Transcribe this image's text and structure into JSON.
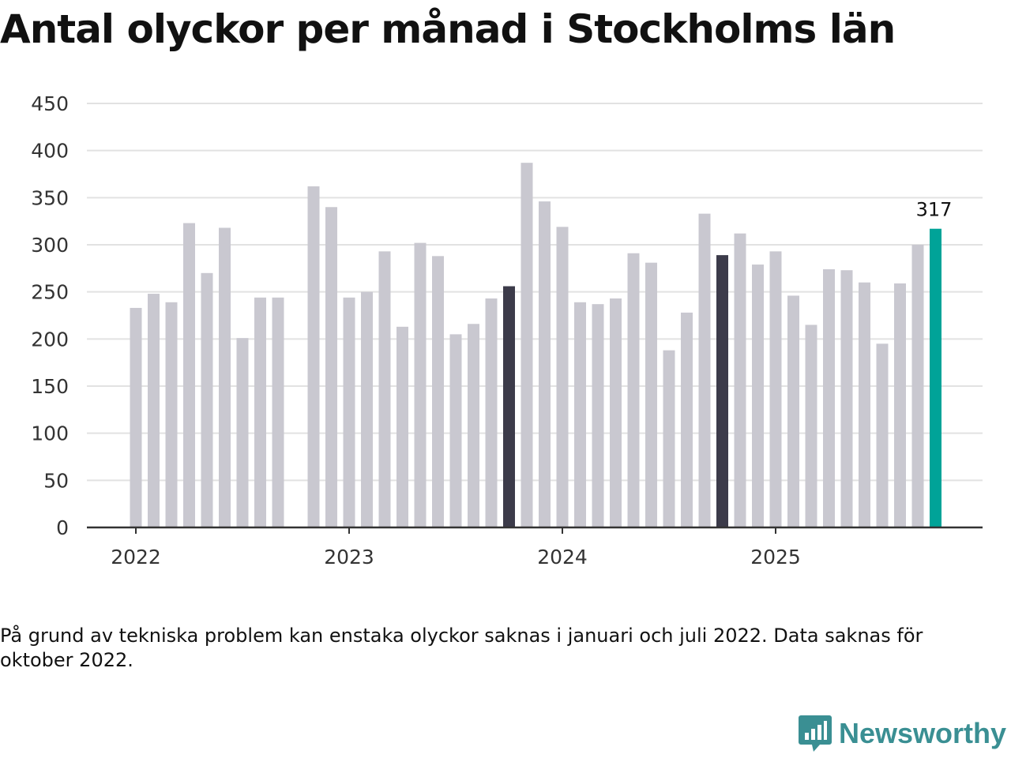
{
  "title": "Antal olyckor per månad i Stockholms län",
  "footnote": "På grund av tekniska problem kan enstaka olyckor saknas i januari och juli 2022. Data saknas för oktober 2022.",
  "brand": "Newsworthy",
  "colors": {
    "default_bar": "#c9c8d0",
    "highlight_bar": "#3c3b4a",
    "current_bar": "#00a398",
    "grid": "#e2e2e2",
    "axis": "#333333",
    "brand": "#3a8f93"
  },
  "chart_data": {
    "type": "bar",
    "title": "Antal olyckor per månad i Stockholms län",
    "xlabel": "",
    "ylabel": "",
    "ylim": [
      0,
      450
    ],
    "yticks": [
      0,
      50,
      100,
      150,
      200,
      250,
      300,
      350,
      400,
      450
    ],
    "xticks": [
      {
        "label": "2022",
        "month_index": 0
      },
      {
        "label": "2023",
        "month_index": 12
      },
      {
        "label": "2024",
        "month_index": 24
      },
      {
        "label": "2025",
        "month_index": 36
      }
    ],
    "grid": true,
    "series": [
      {
        "name": "Olyckor",
        "points": [
          {
            "month": "2022-01",
            "value": 233
          },
          {
            "month": "2022-02",
            "value": 248
          },
          {
            "month": "2022-03",
            "value": 239
          },
          {
            "month": "2022-04",
            "value": 323
          },
          {
            "month": "2022-05",
            "value": 270
          },
          {
            "month": "2022-06",
            "value": 318
          },
          {
            "month": "2022-07",
            "value": 201
          },
          {
            "month": "2022-08",
            "value": 244
          },
          {
            "month": "2022-09",
            "value": 244
          },
          {
            "month": "2022-10",
            "value": null
          },
          {
            "month": "2022-11",
            "value": 362
          },
          {
            "month": "2022-12",
            "value": 340
          },
          {
            "month": "2023-01",
            "value": 244
          },
          {
            "month": "2023-02",
            "value": 250
          },
          {
            "month": "2023-03",
            "value": 293
          },
          {
            "month": "2023-04",
            "value": 213
          },
          {
            "month": "2023-05",
            "value": 302
          },
          {
            "month": "2023-06",
            "value": 288
          },
          {
            "month": "2023-07",
            "value": 205
          },
          {
            "month": "2023-08",
            "value": 216
          },
          {
            "month": "2023-09",
            "value": 243
          },
          {
            "month": "2023-10",
            "value": 256,
            "highlight": "dark"
          },
          {
            "month": "2023-11",
            "value": 387
          },
          {
            "month": "2023-12",
            "value": 346
          },
          {
            "month": "2024-01",
            "value": 319
          },
          {
            "month": "2024-02",
            "value": 239
          },
          {
            "month": "2024-03",
            "value": 237
          },
          {
            "month": "2024-04",
            "value": 243
          },
          {
            "month": "2024-05",
            "value": 291
          },
          {
            "month": "2024-06",
            "value": 281
          },
          {
            "month": "2024-07",
            "value": 188
          },
          {
            "month": "2024-08",
            "value": 228
          },
          {
            "month": "2024-09",
            "value": 333
          },
          {
            "month": "2024-10",
            "value": 289,
            "highlight": "dark"
          },
          {
            "month": "2024-11",
            "value": 312
          },
          {
            "month": "2024-12",
            "value": 279
          },
          {
            "month": "2025-01",
            "value": 293
          },
          {
            "month": "2025-02",
            "value": 246
          },
          {
            "month": "2025-03",
            "value": 215
          },
          {
            "month": "2025-04",
            "value": 274
          },
          {
            "month": "2025-05",
            "value": 273
          },
          {
            "month": "2025-06",
            "value": 260
          },
          {
            "month": "2025-07",
            "value": 195
          },
          {
            "month": "2025-08",
            "value": 259
          },
          {
            "month": "2025-09",
            "value": 300
          },
          {
            "month": "2025-10",
            "value": 317,
            "highlight": "current",
            "label": "317"
          }
        ]
      }
    ]
  }
}
